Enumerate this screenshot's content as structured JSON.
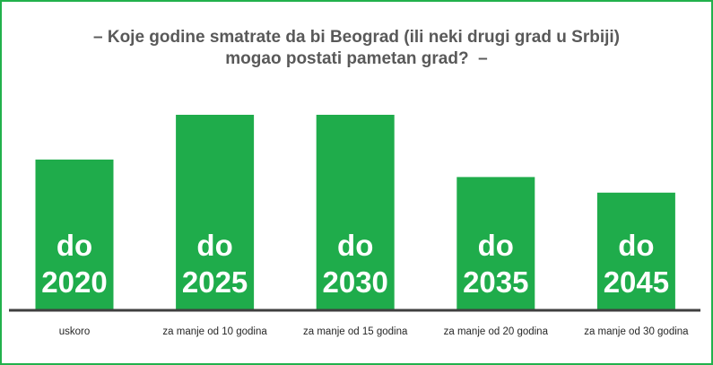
{
  "title": {
    "line1": "– Koje godine smatrate da bi Beograd (ili neki drugi grad u Srbiji)",
    "line2": "mogao postati pametan grad?  –"
  },
  "colors": {
    "bar": "#1fac4b",
    "frame": "#22b14c",
    "axis": "#3f3f3f",
    "title": "#595959",
    "bar_text": "#ffffff",
    "category_text": "#262626"
  },
  "chart_data": {
    "type": "bar",
    "title": "– Koje godine smatrate da bi Beograd (ili neki drugi grad u Srbiji) mogao postati pametan grad?  –",
    "categories": [
      "uskoro",
      "za manje od 10 godina",
      "za manje od 15 godina",
      "za manje od 20 godina",
      "za manje od 30 godina"
    ],
    "bar_labels": [
      [
        "do",
        "2020"
      ],
      [
        "do",
        "2025"
      ],
      [
        "do",
        "2030"
      ],
      [
        "do",
        "2035"
      ],
      [
        "do",
        "2045"
      ]
    ],
    "relative_values": [
      0.77,
      1.0,
      1.0,
      0.68,
      0.6
    ],
    "value_axis_visible": false,
    "grid": false,
    "legend": "none"
  }
}
